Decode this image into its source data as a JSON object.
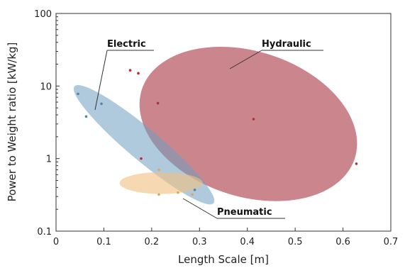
{
  "chart_data": {
    "type": "scatter",
    "xlabel": "Length Scale [m]",
    "ylabel": "Power to Weight ratio [kW/kg]",
    "xlim": [
      0,
      0.7
    ],
    "ylim": [
      0.1,
      100
    ],
    "yscale": "log",
    "x_ticks": [
      "0",
      "0.1",
      "0.2",
      "0.3",
      "0.4",
      "0.5",
      "0.6",
      "0.7"
    ],
    "y_ticks": [
      "0.1",
      "1",
      "10",
      "100"
    ],
    "grid": false,
    "colors": {
      "Hydraulic": "#b5525c",
      "Electric": "#6f9ec1",
      "Pneumatic": "#f0bf7e"
    },
    "series": [
      {
        "name": "Hydraulic",
        "points": [
          {
            "x": 0.155,
            "y": 16.5
          },
          {
            "x": 0.172,
            "y": 15.0
          },
          {
            "x": 0.213,
            "y": 5.8
          },
          {
            "x": 0.413,
            "y": 3.5
          },
          {
            "x": 0.178,
            "y": 1.0
          },
          {
            "x": 0.628,
            "y": 0.85
          }
        ]
      },
      {
        "name": "Electric",
        "points": [
          {
            "x": 0.046,
            "y": 7.8
          },
          {
            "x": 0.095,
            "y": 5.7
          },
          {
            "x": 0.063,
            "y": 3.8
          },
          {
            "x": 0.29,
            "y": 0.37
          }
        ]
      },
      {
        "name": "Pneumatic",
        "points": [
          {
            "x": 0.215,
            "y": 0.7
          },
          {
            "x": 0.215,
            "y": 0.32
          },
          {
            "x": 0.255,
            "y": 0.34
          },
          {
            "x": 0.285,
            "y": 0.32
          }
        ]
      }
    ],
    "regions": [
      {
        "name": "Hydraulic",
        "cx": 0.402,
        "cy": 3.0,
        "rx": 0.234,
        "ry_decades": 1.0,
        "angle": 18
      },
      {
        "name": "Electric",
        "cx": 0.184,
        "cy": 1.55,
        "rx": 0.19,
        "ry_decades": 0.22,
        "angle": 40
      },
      {
        "name": "Pneumatic",
        "cx": 0.22,
        "cy": 0.46,
        "rx": 0.087,
        "ry_decades": 0.15,
        "angle": 0
      }
    ],
    "annotations": [
      {
        "text": "Electric",
        "target_series": "Electric"
      },
      {
        "text": "Hydraulic",
        "target_series": "Hydraulic"
      },
      {
        "text": "Pneumatic",
        "target_series": "Pneumatic"
      }
    ]
  }
}
